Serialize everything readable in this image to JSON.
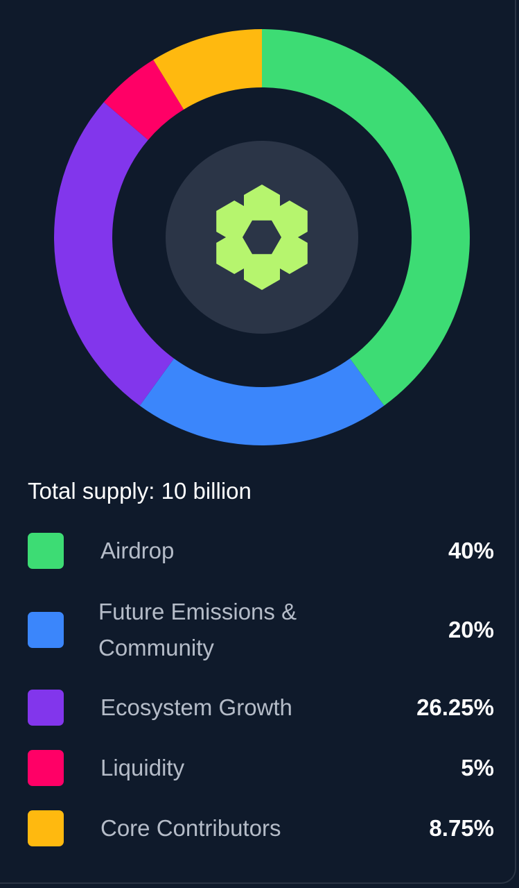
{
  "chart_data": {
    "type": "pie",
    "variant": "donut",
    "categories": [
      "Airdrop",
      "Future Emissions & Community",
      "Ecosystem Growth",
      "Liquidity",
      "Core Contributors"
    ],
    "values": [
      40,
      20,
      26.25,
      5,
      8.75
    ],
    "value_labels": [
      "40%",
      "20%",
      "26.25%",
      "5%",
      "8.75%"
    ],
    "colors": [
      "#3ddc74",
      "#3b86fb",
      "#8236ec",
      "#ff0066",
      "#ffb90f"
    ],
    "direction": "clockwise from top",
    "legend_placement": "bottom"
  },
  "summary": {
    "total_supply": "Total supply: 10 billion"
  },
  "center_logo": {
    "icon": "hexagon-flower-logo-icon",
    "color": "#b6f56e",
    "background": "#2b3547"
  },
  "colors": {
    "background": "#0f1a2b",
    "label_text": "#b5bcc8",
    "value_text": "#ffffff"
  }
}
